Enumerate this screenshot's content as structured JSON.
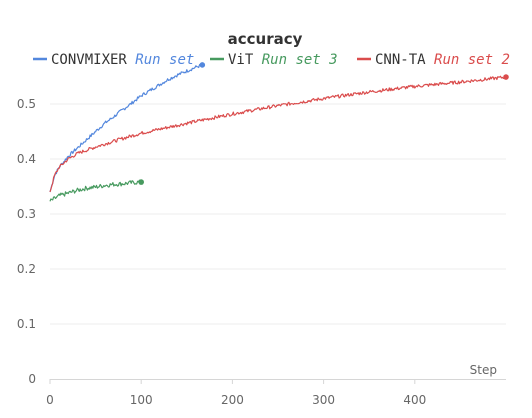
{
  "chart_data": {
    "type": "line",
    "title": "accuracy",
    "xlabel": "Step",
    "ylabel": "",
    "xlim": [
      0,
      500
    ],
    "ylim": [
      0,
      0.58
    ],
    "x_ticks": [
      0,
      100,
      200,
      300,
      400
    ],
    "y_ticks": [
      0,
      0.1,
      0.2,
      0.3,
      0.4,
      0.5
    ],
    "grid": true,
    "legend_position": "top",
    "series": [
      {
        "name": "CONVMIXER",
        "run_set": "Run set",
        "color": "#5387dd",
        "noise": 0.003,
        "x": [
          0,
          5,
          10,
          20,
          30,
          40,
          50,
          60,
          70,
          80,
          90,
          100,
          110,
          120,
          130,
          140,
          150,
          160,
          167
        ],
        "y": [
          0.34,
          0.37,
          0.385,
          0.405,
          0.42,
          0.435,
          0.45,
          0.465,
          0.477,
          0.49,
          0.502,
          0.515,
          0.525,
          0.535,
          0.545,
          0.553,
          0.56,
          0.567,
          0.571
        ]
      },
      {
        "name": "ViT",
        "run_set": "Run set 3",
        "color": "#479a5f",
        "noise": 0.004,
        "x": [
          0,
          5,
          10,
          20,
          30,
          40,
          50,
          60,
          70,
          80,
          90,
          100
        ],
        "y": [
          0.323,
          0.328,
          0.333,
          0.338,
          0.343,
          0.347,
          0.349,
          0.352,
          0.354,
          0.355,
          0.357,
          0.358
        ]
      },
      {
        "name": "CNN-TA",
        "run_set": "Run set 2",
        "color": "#da4c4c",
        "noise": 0.003,
        "x": [
          0,
          5,
          10,
          20,
          30,
          50,
          75,
          100,
          150,
          200,
          250,
          300,
          350,
          400,
          450,
          500
        ],
        "y": [
          0.34,
          0.37,
          0.385,
          0.4,
          0.41,
          0.422,
          0.435,
          0.447,
          0.465,
          0.482,
          0.497,
          0.51,
          0.522,
          0.532,
          0.54,
          0.549
        ]
      }
    ]
  }
}
